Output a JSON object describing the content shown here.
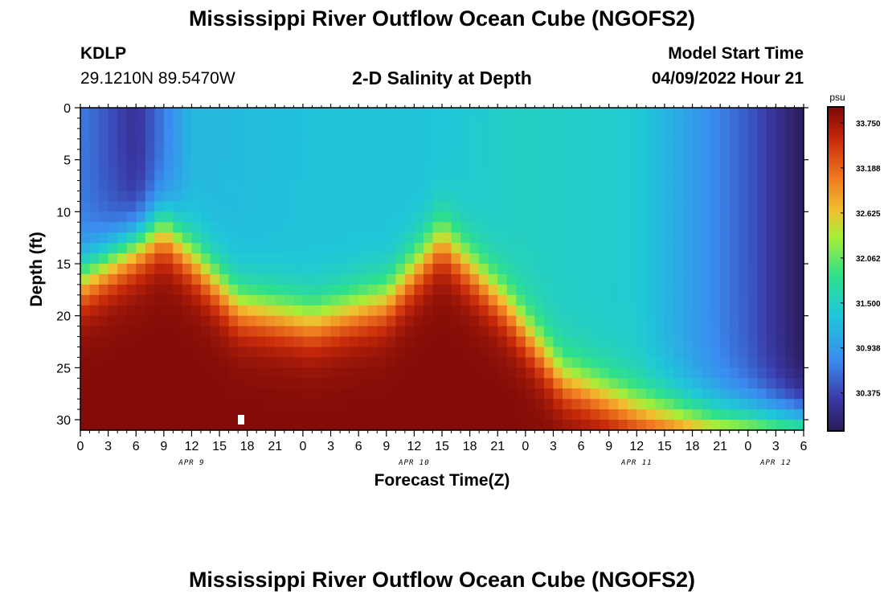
{
  "header": {
    "title": "Mississippi River Outflow Ocean Cube (NGOFS2)",
    "station": "KDLP",
    "coords": "29.1210N  89.5470W",
    "subtitle": "2-D Salinity at Depth",
    "model_start_label": "Model Start Time",
    "model_start_value": "04/09/2022 Hour 21"
  },
  "footer": {
    "title": "Mississippi River Outflow Ocean Cube (NGOFS2)"
  },
  "colors": {
    "low": "#2b1a55",
    "mid": "#2fe08a",
    "high": "#8a0a0a"
  },
  "chart_data": {
    "type": "heatmap",
    "title": "2-D Salinity at Depth",
    "xlabel": "Forecast Time(Z)",
    "ylabel": "Depth (ft)",
    "x_ticks": [
      "0",
      "3",
      "6",
      "9",
      "12",
      "15",
      "18",
      "21",
      "0",
      "3",
      "6",
      "9",
      "12",
      "15",
      "18",
      "21",
      "0",
      "3",
      "6",
      "9",
      "12",
      "15",
      "18",
      "21",
      "0",
      "3",
      "6"
    ],
    "x_day_labels": [
      {
        "label": "APR 9",
        "hour": 12
      },
      {
        "label": "APR 10",
        "hour": 36
      },
      {
        "label": "APR 11",
        "hour": 60
      },
      {
        "label": "APR 12",
        "hour": 75
      }
    ],
    "x_range_hours": [
      0,
      78
    ],
    "y_ticks": [
      "0",
      "5",
      "10",
      "15",
      "20",
      "25",
      "30"
    ],
    "ylim": [
      0,
      31
    ],
    "colorbar": {
      "unit": "psu",
      "tick_labels": [
        "33.750",
        "33.188",
        "32.625",
        "32.062",
        "31.500",
        "30.938",
        "30.375"
      ],
      "range": [
        29.9,
        33.95
      ]
    },
    "surface_salinity_psu": [
      {
        "hour": 0,
        "value": 30.7
      },
      {
        "hour": 6,
        "value": 30.2
      },
      {
        "hour": 12,
        "value": 31.2
      },
      {
        "hour": 24,
        "value": 31.3
      },
      {
        "hour": 36,
        "value": 31.3
      },
      {
        "hour": 48,
        "value": 31.5
      },
      {
        "hour": 60,
        "value": 31.4
      },
      {
        "hour": 72,
        "value": 30.5
      },
      {
        "hour": 78,
        "value": 29.9
      }
    ],
    "halocline_depth_ft": [
      {
        "hour": 0,
        "value": 16.5
      },
      {
        "hour": 9,
        "value": 11.5
      },
      {
        "hour": 17,
        "value": 19
      },
      {
        "hour": 25,
        "value": 20.5
      },
      {
        "hour": 33,
        "value": 18.5
      },
      {
        "hour": 39,
        "value": 12.5
      },
      {
        "hour": 46,
        "value": 19
      },
      {
        "hour": 52,
        "value": 26
      },
      {
        "hour": 60,
        "value": 29
      },
      {
        "hour": 68,
        "value": 30.5
      },
      {
        "hour": 78,
        "value": 31
      }
    ],
    "bottom_salinity_psu": 33.9
  }
}
